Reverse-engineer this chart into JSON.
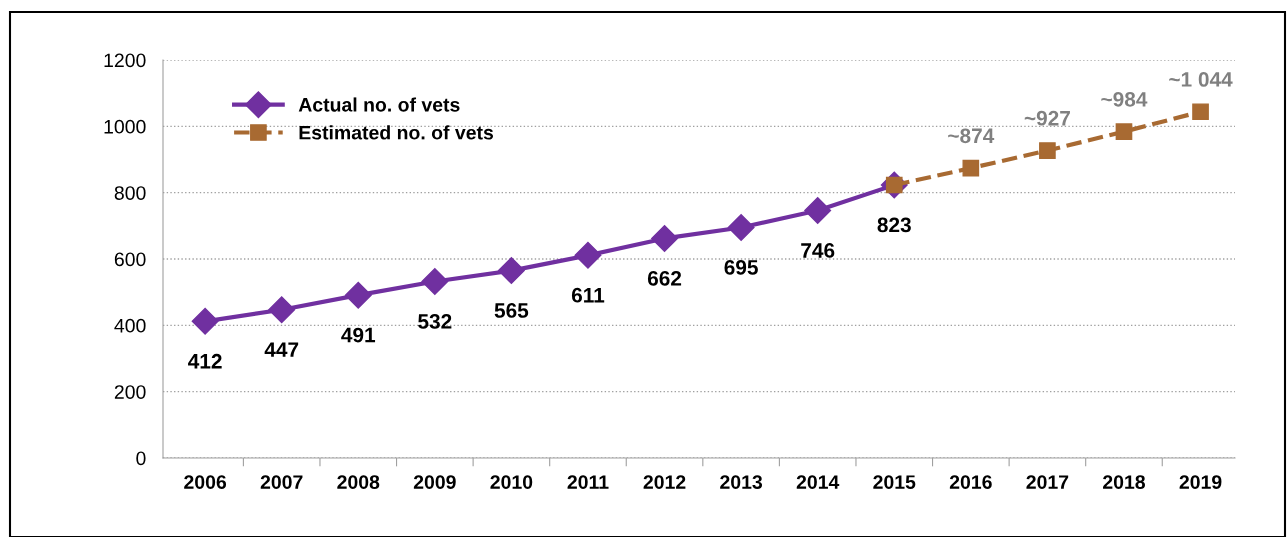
{
  "chart_data": {
    "type": "line",
    "categories": [
      "2006",
      "2007",
      "2008",
      "2009",
      "2010",
      "2011",
      "2012",
      "2013",
      "2014",
      "2015",
      "2016",
      "2017",
      "2018",
      "2019"
    ],
    "series": [
      {
        "name": "Actual no. of vets",
        "color": "#7030a0",
        "marker": "diamond",
        "line_style": "solid",
        "values": [
          412,
          447,
          491,
          532,
          565,
          611,
          662,
          695,
          746,
          823,
          null,
          null,
          null,
          null
        ],
        "value_labels": [
          "412",
          "447",
          "491",
          "532",
          "565",
          "611",
          "662",
          "695",
          "746",
          "823",
          null,
          null,
          null,
          null
        ]
      },
      {
        "name": "Estimated no. of vets",
        "color": "#a86a32",
        "marker": "square",
        "line_style": "dashed",
        "values": [
          null,
          null,
          null,
          null,
          null,
          null,
          null,
          null,
          null,
          823,
          874,
          927,
          984,
          1044
        ],
        "value_labels": [
          null,
          null,
          null,
          null,
          null,
          null,
          null,
          null,
          null,
          null,
          "~874",
          "~927",
          "~984",
          "~1 044"
        ]
      }
    ],
    "ylim": [
      0,
      1200
    ],
    "yticks": [
      0,
      200,
      400,
      600,
      800,
      1000,
      1200
    ],
    "grid": "y",
    "legend": "top left"
  }
}
